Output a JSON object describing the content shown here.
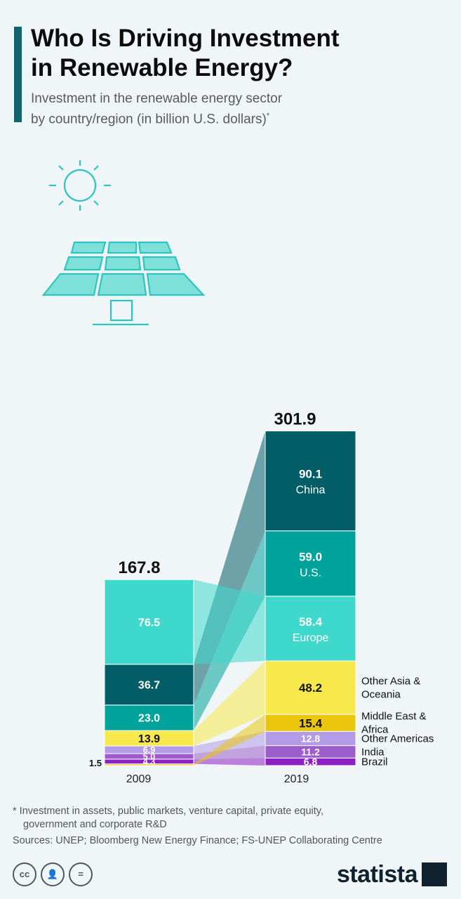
{
  "header": {
    "title_line1": "Who Is Driving Investment",
    "title_line2": "in Renewable Energy?",
    "subtitle_line1": "Investment in the renewable energy sector",
    "subtitle_line2": "by country/region (in billion U.S. dollars)",
    "subtitle_marker": "*"
  },
  "chart_data": {
    "type": "bar",
    "stacked": true,
    "categories": [
      "2009",
      "2019"
    ],
    "totals": {
      "2009": "167.8",
      "2019": "301.9"
    },
    "series": [
      {
        "name": "Brazil",
        "values": [
          4.3,
          6.8
        ],
        "labels": [
          "4.3",
          "6.8"
        ],
        "color": "#8e1fc6"
      },
      {
        "name": "India",
        "values": [
          5.0,
          11.2
        ],
        "labels": [
          "5.0",
          "11.2"
        ],
        "color": "#9b5ccc"
      },
      {
        "name": "Other Americas",
        "values": [
          6.9,
          12.8
        ],
        "labels": [
          "6.9",
          "12.8"
        ],
        "color": "#b49be8"
      },
      {
        "name": "Middle East & Africa",
        "values": [
          1.5,
          15.4
        ],
        "labels": [
          "1.5",
          "15.4"
        ],
        "color": "#eac70d"
      },
      {
        "name": "Other Asia & Oceania",
        "values": [
          13.9,
          48.2
        ],
        "labels": [
          "13.9",
          "48.2"
        ],
        "color": "#f7e84b"
      },
      {
        "name": "U.S.",
        "values": [
          23.0,
          59.0
        ],
        "labels": [
          "23.0",
          "59.0"
        ],
        "color": "#00a39b"
      },
      {
        "name": "China",
        "values": [
          36.7,
          90.1
        ],
        "labels": [
          "36.7",
          "90.1"
        ],
        "color": "#025d67"
      },
      {
        "name": "Europe",
        "values": [
          76.5,
          58.4
        ],
        "labels": [
          "76.5",
          "58.4"
        ],
        "color": "#3ed9cc"
      }
    ],
    "order_2009": [
      "Middle East & Africa",
      "Brazil",
      "India",
      "Other Americas",
      "Other Asia & Oceania",
      "U.S.",
      "China",
      "Europe"
    ],
    "order_2019": [
      "Brazil",
      "India",
      "Other Americas",
      "Middle East & Africa",
      "Other Asia & Oceania",
      "Europe",
      "U.S.",
      "China"
    ],
    "inside_labels_2019": [
      "China",
      "U.S.",
      "Europe"
    ],
    "side_labels_2019": [
      {
        "series": "Other Asia & Oceania",
        "lines": [
          "Other Asia &",
          "Oceania"
        ]
      },
      {
        "series": "Middle East & Africa",
        "lines": [
          "Middle East &",
          "Africa"
        ]
      },
      {
        "series": "Other Americas",
        "lines": [
          "Other Americas"
        ]
      },
      {
        "series": "India",
        "lines": [
          "India"
        ]
      },
      {
        "series": "Brazil",
        "lines": [
          "Brazil"
        ]
      }
    ]
  },
  "footer": {
    "footnote_line1": "* Investment in assets, public markets, venture capital, private equity,",
    "footnote_line2": "government and corporate R&D",
    "sources": "Sources: UNEP; Bloomberg New Energy Finance; FS-UNEP Collaborating Centre",
    "brand": "statista",
    "license_icons": [
      "cc-icon",
      "attribution-icon",
      "no-derivatives-icon"
    ]
  }
}
